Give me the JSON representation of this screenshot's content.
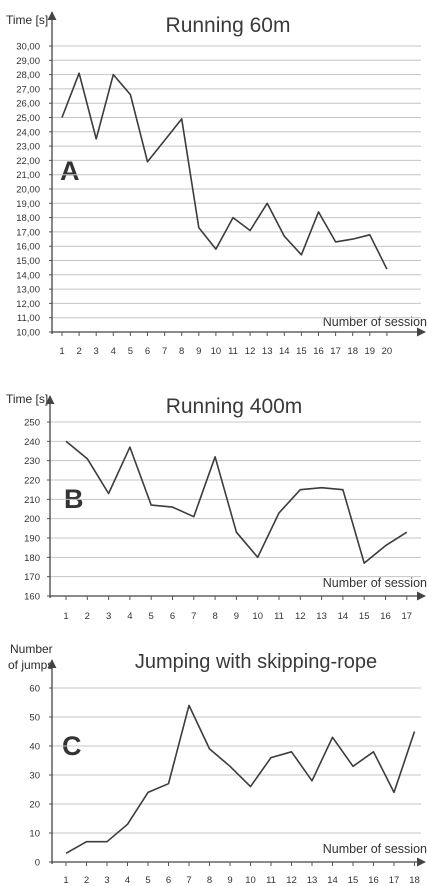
{
  "chart_data": [
    {
      "type": "line",
      "panel_label": "A",
      "title": "Running 60m",
      "ylabel": "Time [s]",
      "xlabel": "Number of session",
      "ylim": [
        10,
        30
      ],
      "ytick_step": 1,
      "ytick_labels": [
        "10,00",
        "11,00",
        "12,00",
        "13,00",
        "14,00",
        "15,00",
        "16,00",
        "17,00",
        "18,00",
        "19,00",
        "20,00",
        "21,00",
        "22,00",
        "23,00",
        "24,00",
        "25,00",
        "26,00",
        "27,00",
        "28,00",
        "29,00",
        "30,00"
      ],
      "x": [
        1,
        2,
        3,
        4,
        5,
        6,
        7,
        8,
        9,
        10,
        11,
        12,
        13,
        14,
        15,
        16,
        17,
        18,
        19,
        20
      ],
      "x_tick_labels": [
        "1",
        "2",
        "3",
        "4",
        "5",
        "6",
        "7",
        "8",
        "9",
        "10",
        "11",
        "12",
        "13",
        "14",
        "15",
        "16",
        "17",
        "18",
        "19",
        "20"
      ],
      "values": [
        25.0,
        28.1,
        23.5,
        28.0,
        26.6,
        21.9,
        23.4,
        24.9,
        17.3,
        15.8,
        18.0,
        17.1,
        19.0,
        16.7,
        15.4,
        18.4,
        16.3,
        16.5,
        16.8,
        14.4
      ],
      "grid": true
    },
    {
      "type": "line",
      "panel_label": "B",
      "title": "Running 400m",
      "ylabel": "Time [s]",
      "xlabel": "Number of session",
      "ylim": [
        160,
        250
      ],
      "ytick_step": 10,
      "ytick_labels": [
        "160",
        "170",
        "180",
        "190",
        "200",
        "210",
        "220",
        "230",
        "240",
        "250"
      ],
      "x": [
        1,
        2,
        3,
        4,
        5,
        6,
        7,
        8,
        9,
        10,
        11,
        12,
        13,
        14,
        15,
        16,
        17
      ],
      "x_tick_labels": [
        "1",
        "2",
        "3",
        "4",
        "5",
        "6",
        "7",
        "8",
        "9",
        "10",
        "11",
        "12",
        "13",
        "14",
        "15",
        "16",
        "17"
      ],
      "values": [
        240,
        231,
        213,
        237,
        207,
        206,
        201,
        232,
        193,
        180,
        203,
        215,
        216,
        215,
        177,
        186,
        193
      ],
      "grid": true
    },
    {
      "type": "line",
      "panel_label": "C",
      "title": "Jumping with skipping-rope",
      "ylabel": [
        "Number",
        "of jumps"
      ],
      "xlabel": "Number of session",
      "ylim": [
        0,
        60
      ],
      "ytick_step": 10,
      "ytick_labels": [
        "0",
        "10",
        "20",
        "30",
        "40",
        "50",
        "60"
      ],
      "x": [
        1,
        2,
        3,
        4,
        5,
        6,
        7,
        8,
        9,
        10,
        11,
        12,
        13,
        14,
        15,
        16,
        17,
        18
      ],
      "x_tick_labels": [
        "1",
        "2",
        "3",
        "4",
        "5",
        "6",
        "7",
        "8",
        "9",
        "10",
        "11",
        "12",
        "13",
        "14",
        "15",
        "16",
        "17",
        "18"
      ],
      "values": [
        3,
        7,
        7,
        13,
        24,
        27,
        54,
        39,
        33,
        26,
        36,
        38,
        28,
        43,
        33,
        38,
        24,
        45
      ],
      "grid": true
    }
  ]
}
